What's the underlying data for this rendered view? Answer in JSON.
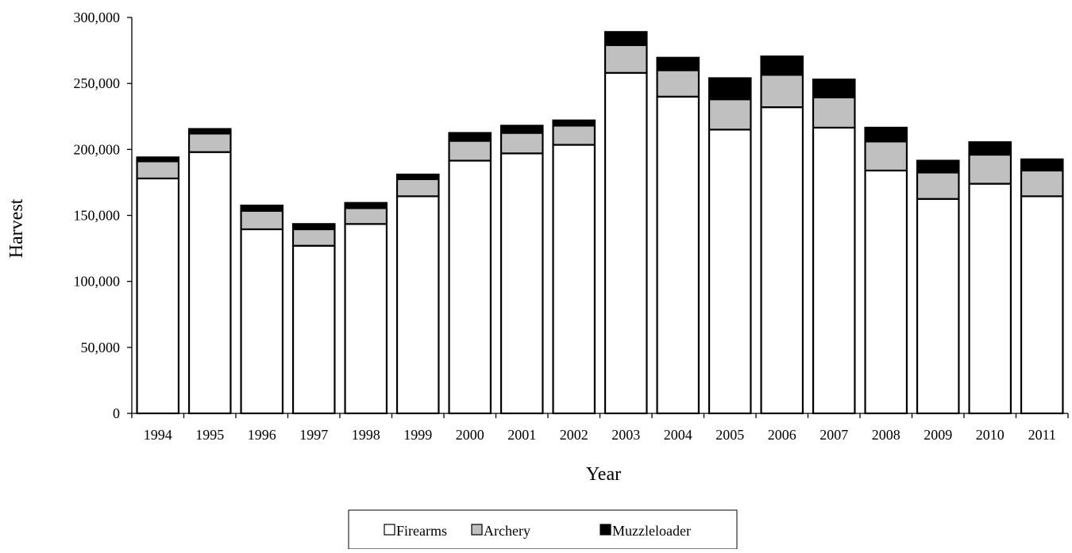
{
  "chart_data": {
    "type": "bar",
    "stacked": true,
    "categories": [
      "1994",
      "1995",
      "1996",
      "1997",
      "1998",
      "1999",
      "2000",
      "2001",
      "2002",
      "2003",
      "2004",
      "2005",
      "2006",
      "2007",
      "2008",
      "2009",
      "2010",
      "2011"
    ],
    "series": [
      {
        "name": "Firearms",
        "color": "#ffffff",
        "values": [
          178000,
          198000,
          139500,
          127000,
          143500,
          164500,
          191500,
          197000,
          203500,
          258000,
          240000,
          215000,
          232000,
          216500,
          184000,
          162500,
          174000,
          164500
        ]
      },
      {
        "name": "Archery",
        "color": "#c0c0c0",
        "values": [
          13000,
          14000,
          14000,
          12500,
          12000,
          13000,
          15000,
          15500,
          14500,
          21000,
          20000,
          23000,
          24500,
          23000,
          22000,
          20000,
          22000,
          19500
        ]
      },
      {
        "name": "Muzzleloader",
        "color": "#000000",
        "values": [
          3000,
          3500,
          4000,
          4000,
          4000,
          3500,
          6000,
          5500,
          4000,
          10000,
          9500,
          16000,
          14000,
          13500,
          10500,
          9000,
          9500,
          8500
        ]
      }
    ],
    "xlabel": "Year",
    "ylabel": "Harvest",
    "ylim": [
      0,
      300000
    ],
    "yticks": [
      0,
      50000,
      100000,
      150000,
      200000,
      250000,
      300000
    ],
    "ytick_labels": [
      "0",
      "50,000",
      "100,000",
      "150,000",
      "200,000",
      "250,000",
      "300,000"
    ],
    "grid": false,
    "legend_position": "bottom-center"
  }
}
